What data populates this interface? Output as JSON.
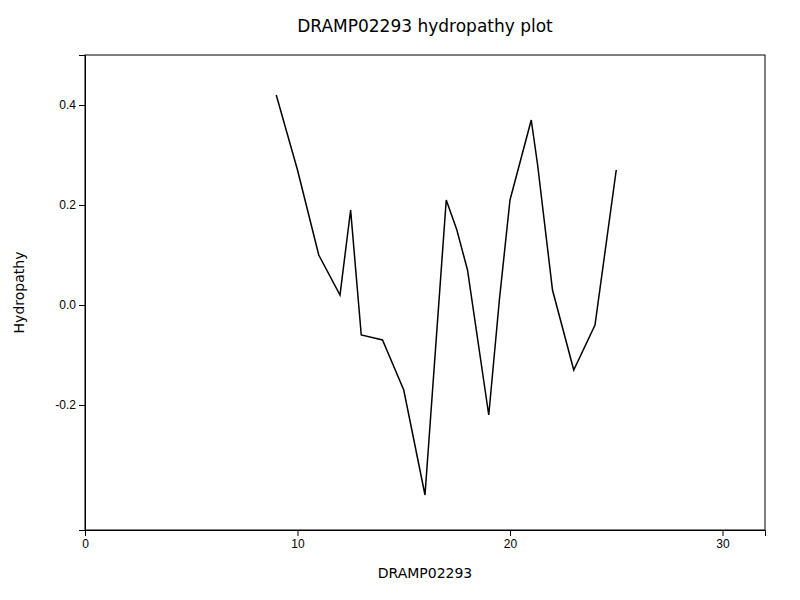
{
  "chart_data": {
    "type": "line",
    "title": "DRAMP02293 hydropathy plot",
    "xlabel": "DRAMP02293",
    "ylabel": "Hydropathy",
    "x": [
      9,
      10,
      11,
      12,
      12.5,
      13,
      14,
      15,
      16,
      17,
      17.5,
      18,
      19,
      19.5,
      20,
      21,
      21.3,
      22,
      23,
      24,
      25
    ],
    "values": [
      0.42,
      0.27,
      0.1,
      0.02,
      0.19,
      -0.06,
      -0.07,
      -0.17,
      -0.38,
      0.21,
      0.15,
      0.07,
      -0.22,
      0.01,
      0.21,
      0.37,
      0.28,
      0.03,
      -0.13,
      -0.04,
      0.27
    ],
    "color": "#000000",
    "xlim": [
      0,
      32
    ],
    "ylim": [
      -0.45,
      0.5
    ],
    "xticks": [
      0,
      10,
      20,
      30
    ],
    "yticks": [
      -0.2,
      {
        "value": 0.0,
        "label": "0.0"
      },
      0.2,
      0.4
    ],
    "grid": false
  }
}
